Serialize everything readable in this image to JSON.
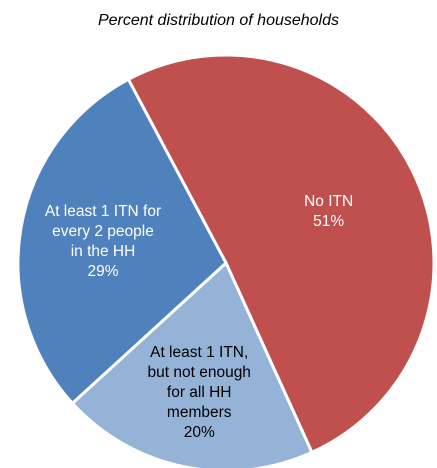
{
  "chart_data": {
    "type": "pie",
    "title": "Percent distribution of households",
    "categories": [
      "No ITN",
      "At least 1 ITN, but not enough for all HH members",
      "At least 1 ITN for every 2 people in the HH"
    ],
    "values": [
      51,
      20,
      29
    ],
    "value_labels": [
      "51%",
      "20%",
      "29%"
    ],
    "colors": [
      "#C0504D",
      "#95B3D7",
      "#4F81BD"
    ]
  }
}
